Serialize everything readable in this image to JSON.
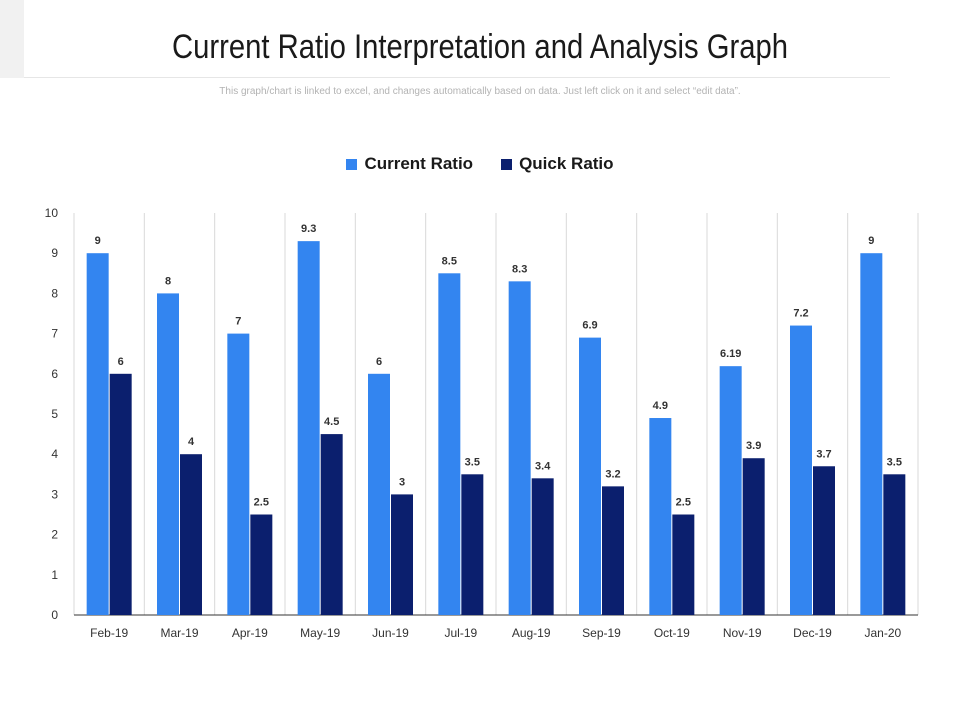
{
  "page": {
    "title": "Current Ratio Interpretation and Analysis Graph",
    "subtitle": "This graph/chart is linked to excel, and changes automatically  based on data. Just left click on it and select “edit data”."
  },
  "colors": {
    "current": "#3385f0",
    "quick": "#0b1f6e",
    "grid": "#d9d9d9",
    "axis": "#333333"
  },
  "chart_data": {
    "type": "bar",
    "categories": [
      "Feb-19",
      "Mar-19",
      "Apr-19",
      "May-19",
      "Jun-19",
      "Jul-19",
      "Aug-19",
      "Sep-19",
      "Oct-19",
      "Nov-19",
      "Dec-19",
      "Jan-20"
    ],
    "series": [
      {
        "name": "Current Ratio",
        "values": [
          9,
          8,
          7,
          9.3,
          6,
          8.5,
          8.3,
          6.9,
          4.9,
          6.19,
          7.2,
          9
        ],
        "labels": [
          "9",
          "8",
          "7",
          "9.3",
          "6",
          "8.5",
          "8.3",
          "6.9",
          "4.9",
          "6.19",
          "7.2",
          "9"
        ]
      },
      {
        "name": "Quick Ratio",
        "values": [
          6,
          4,
          2.5,
          4.5,
          3,
          3.5,
          3.4,
          3.2,
          2.5,
          3.9,
          3.7,
          3.5
        ],
        "labels": [
          "6",
          "4",
          "2.5",
          "4.5",
          "3",
          "3.5",
          "3.4",
          "3.2",
          "2.5",
          "3.9",
          "3.7",
          "3.5"
        ]
      }
    ],
    "yticks": [
      "0",
      "1",
      "2",
      "3",
      "4",
      "5",
      "6",
      "7",
      "8",
      "9",
      "10"
    ],
    "ylim": [
      0,
      10
    ],
    "legend_position": "top-center",
    "grid": "vertical category separators"
  }
}
